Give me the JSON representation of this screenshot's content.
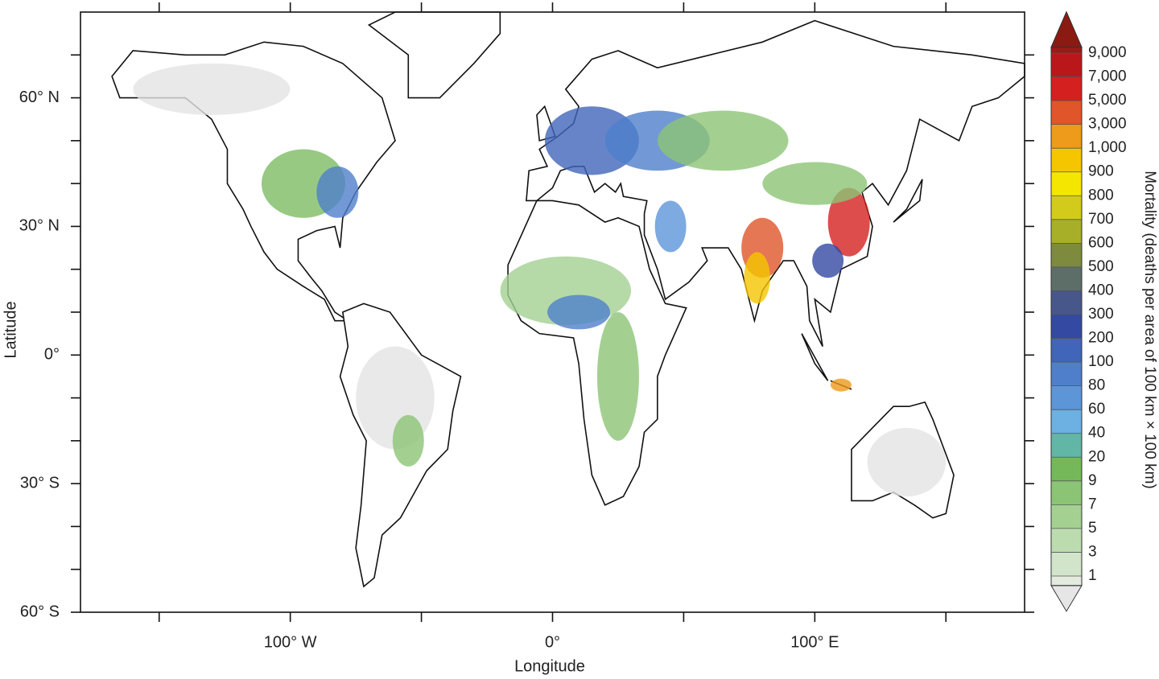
{
  "chart_data": {
    "type": "map",
    "xlabel": "Longitude",
    "ylabel": "Latitude",
    "xlim": [
      -180,
      180
    ],
    "ylim": [
      -60,
      80
    ],
    "xticks": [
      {
        "value": -100,
        "label": "100° W"
      },
      {
        "value": 0,
        "label": "0°"
      },
      {
        "value": 100,
        "label": "100° E"
      }
    ],
    "x_minor_ticks": [
      -150,
      -50,
      50,
      150
    ],
    "yticks": [
      {
        "value": 60,
        "label": "60° N"
      },
      {
        "value": 30,
        "label": "30° N"
      },
      {
        "value": 0,
        "label": "0°"
      },
      {
        "value": -30,
        "label": "30° S"
      },
      {
        "value": -60,
        "label": "60° S"
      }
    ],
    "y_minor_ticks": [
      70,
      50,
      40,
      20,
      10,
      -10,
      -20,
      -40,
      -50
    ],
    "colorbar": {
      "label": "Mortality (deaths per area of 100 km × 100 km)",
      "ticks": [
        1,
        3,
        5,
        7,
        9,
        20,
        40,
        60,
        80,
        100,
        200,
        300,
        400,
        500,
        600,
        700,
        800,
        900,
        {
          "value": 1000,
          "label": "1,000"
        },
        {
          "value": 3000,
          "label": "3,000"
        },
        {
          "value": 5000,
          "label": "5,000"
        },
        {
          "value": 7000,
          "label": "7,000"
        },
        {
          "value": 9000,
          "label": "9,000"
        }
      ],
      "colors": [
        "#e3ebde",
        "#d2e5cb",
        "#bcdcaf",
        "#a4d092",
        "#8cc475",
        "#74b85a",
        "#62b6a6",
        "#6db0e2",
        "#5c95d8",
        "#4f7fca",
        "#4065b9",
        "#3349a2",
        "#47578a",
        "#5d6d68",
        "#7e8b3e",
        "#a7ae28",
        "#d2cb1b",
        "#f5e600",
        "#f5c500",
        "#ee9a1a",
        "#e0552a",
        "#d4201f",
        "#ba171b",
        "#9a1a16"
      ],
      "under_color": "#e6e6e6",
      "over_color": "#8a1a12"
    }
  }
}
